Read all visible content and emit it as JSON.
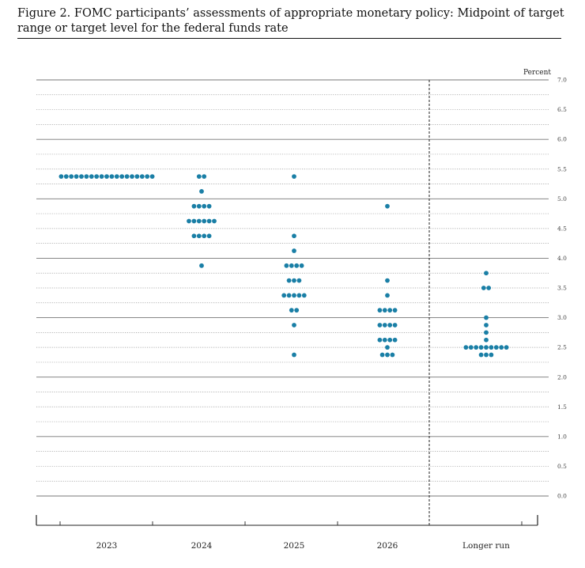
{
  "figure": {
    "title": "Figure 2.  FOMC participants’ assessments of appropriate monetary policy:  Midpoint of target range or target level for the federal funds rate"
  },
  "colors": {
    "dot": "#1a7fa6",
    "major_grid": "#777777",
    "minor_grid": "#999999",
    "axis": "#222222"
  },
  "chart_data": {
    "type": "scatter",
    "chart_style": "dot-plot",
    "unit_label": "Percent",
    "ylim": [
      0,
      7
    ],
    "y_ticks": [
      "7.0",
      "6.5",
      "6.0",
      "5.5",
      "5.0",
      "4.5",
      "4.0",
      "3.5",
      "3.0",
      "2.5",
      "2.0",
      "1.5",
      "1.0",
      "0.5",
      "0.0"
    ],
    "grid": "horizontal lines every 0.25; solid at whole percents, dotted otherwise",
    "categories": [
      "2023",
      "2024",
      "2025",
      "2026",
      "Longer run"
    ],
    "separator": "dashed vertical line before Longer run",
    "series": [
      {
        "category": "2023",
        "points": [
          {
            "y": 5.375,
            "count": 19
          }
        ]
      },
      {
        "category": "2024",
        "points": [
          {
            "y": 5.375,
            "count": 2
          },
          {
            "y": 5.125,
            "count": 1
          },
          {
            "y": 4.875,
            "count": 4
          },
          {
            "y": 4.625,
            "count": 6
          },
          {
            "y": 4.375,
            "count": 4
          },
          {
            "y": 3.875,
            "count": 1
          }
        ]
      },
      {
        "category": "2025",
        "points": [
          {
            "y": 5.375,
            "count": 1
          },
          {
            "y": 4.375,
            "count": 1
          },
          {
            "y": 4.125,
            "count": 1
          },
          {
            "y": 3.875,
            "count": 4
          },
          {
            "y": 3.625,
            "count": 3
          },
          {
            "y": 3.375,
            "count": 5
          },
          {
            "y": 3.125,
            "count": 2
          },
          {
            "y": 2.875,
            "count": 1
          },
          {
            "y": 2.375,
            "count": 1
          }
        ]
      },
      {
        "category": "2026",
        "points": [
          {
            "y": 4.875,
            "count": 1
          },
          {
            "y": 3.625,
            "count": 1
          },
          {
            "y": 3.375,
            "count": 1
          },
          {
            "y": 3.125,
            "count": 4
          },
          {
            "y": 2.875,
            "count": 4
          },
          {
            "y": 2.625,
            "count": 4
          },
          {
            "y": 2.5,
            "count": 1
          },
          {
            "y": 2.375,
            "count": 3
          }
        ]
      },
      {
        "category": "Longer run",
        "points": [
          {
            "y": 3.75,
            "count": 1
          },
          {
            "y": 3.5,
            "count": 2
          },
          {
            "y": 3.0,
            "count": 1
          },
          {
            "y": 2.875,
            "count": 1
          },
          {
            "y": 2.75,
            "count": 1
          },
          {
            "y": 2.625,
            "count": 1
          },
          {
            "y": 2.5,
            "count": 9
          },
          {
            "y": 2.375,
            "count": 3
          }
        ]
      }
    ]
  }
}
